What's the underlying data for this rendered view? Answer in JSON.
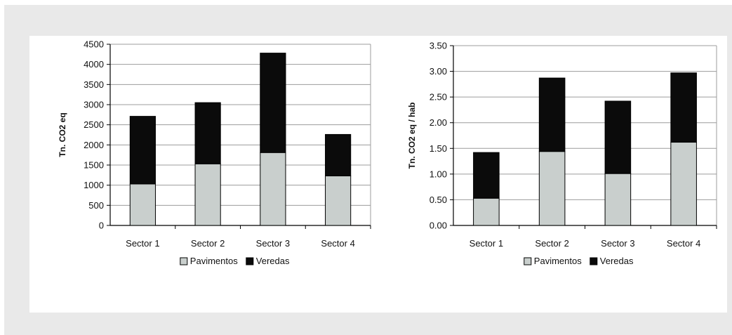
{
  "colors": {
    "frame": "#e9e9e9",
    "panel": "#ffffff",
    "pavimentos": "#c9cfcd",
    "veredas": "#0b0b0b",
    "grid": "#9c9c9c",
    "axis": "#000000"
  },
  "chart_data": [
    {
      "type": "bar",
      "stacked": true,
      "title": "",
      "xlabel": "",
      "ylabel": "Tn. CO2 eq",
      "ylim": [
        0,
        4500
      ],
      "yticks": [
        "0",
        "500",
        "1000",
        "1500",
        "2000",
        "2500",
        "3000",
        "3500",
        "4000",
        "4500"
      ],
      "categories": [
        "Sector 1",
        "Sector 2",
        "Sector 3",
        "Sector 4"
      ],
      "series": [
        {
          "name": "Pavimentos",
          "values": [
            1030,
            1530,
            1810,
            1230
          ]
        },
        {
          "name": "Veredas",
          "values": [
            1680,
            1520,
            2470,
            1030
          ]
        }
      ],
      "grid": true,
      "legend": "bottom"
    },
    {
      "type": "bar",
      "stacked": true,
      "title": "",
      "xlabel": "",
      "ylabel": "Tn. CO2 eq / hab",
      "ylim": [
        0,
        3.5
      ],
      "yticks": [
        "0.00",
        "0.50",
        "1.00",
        "1.50",
        "2.00",
        "2.50",
        "3.00",
        "3.50"
      ],
      "categories": [
        "Sector 1",
        "Sector 2",
        "Sector 3",
        "Sector 4"
      ],
      "series": [
        {
          "name": "Pavimentos",
          "values": [
            0.53,
            1.44,
            1.01,
            1.62
          ]
        },
        {
          "name": "Veredas",
          "values": [
            0.89,
            1.43,
            1.41,
            1.35
          ]
        }
      ],
      "grid": true,
      "legend": "bottom"
    }
  ]
}
